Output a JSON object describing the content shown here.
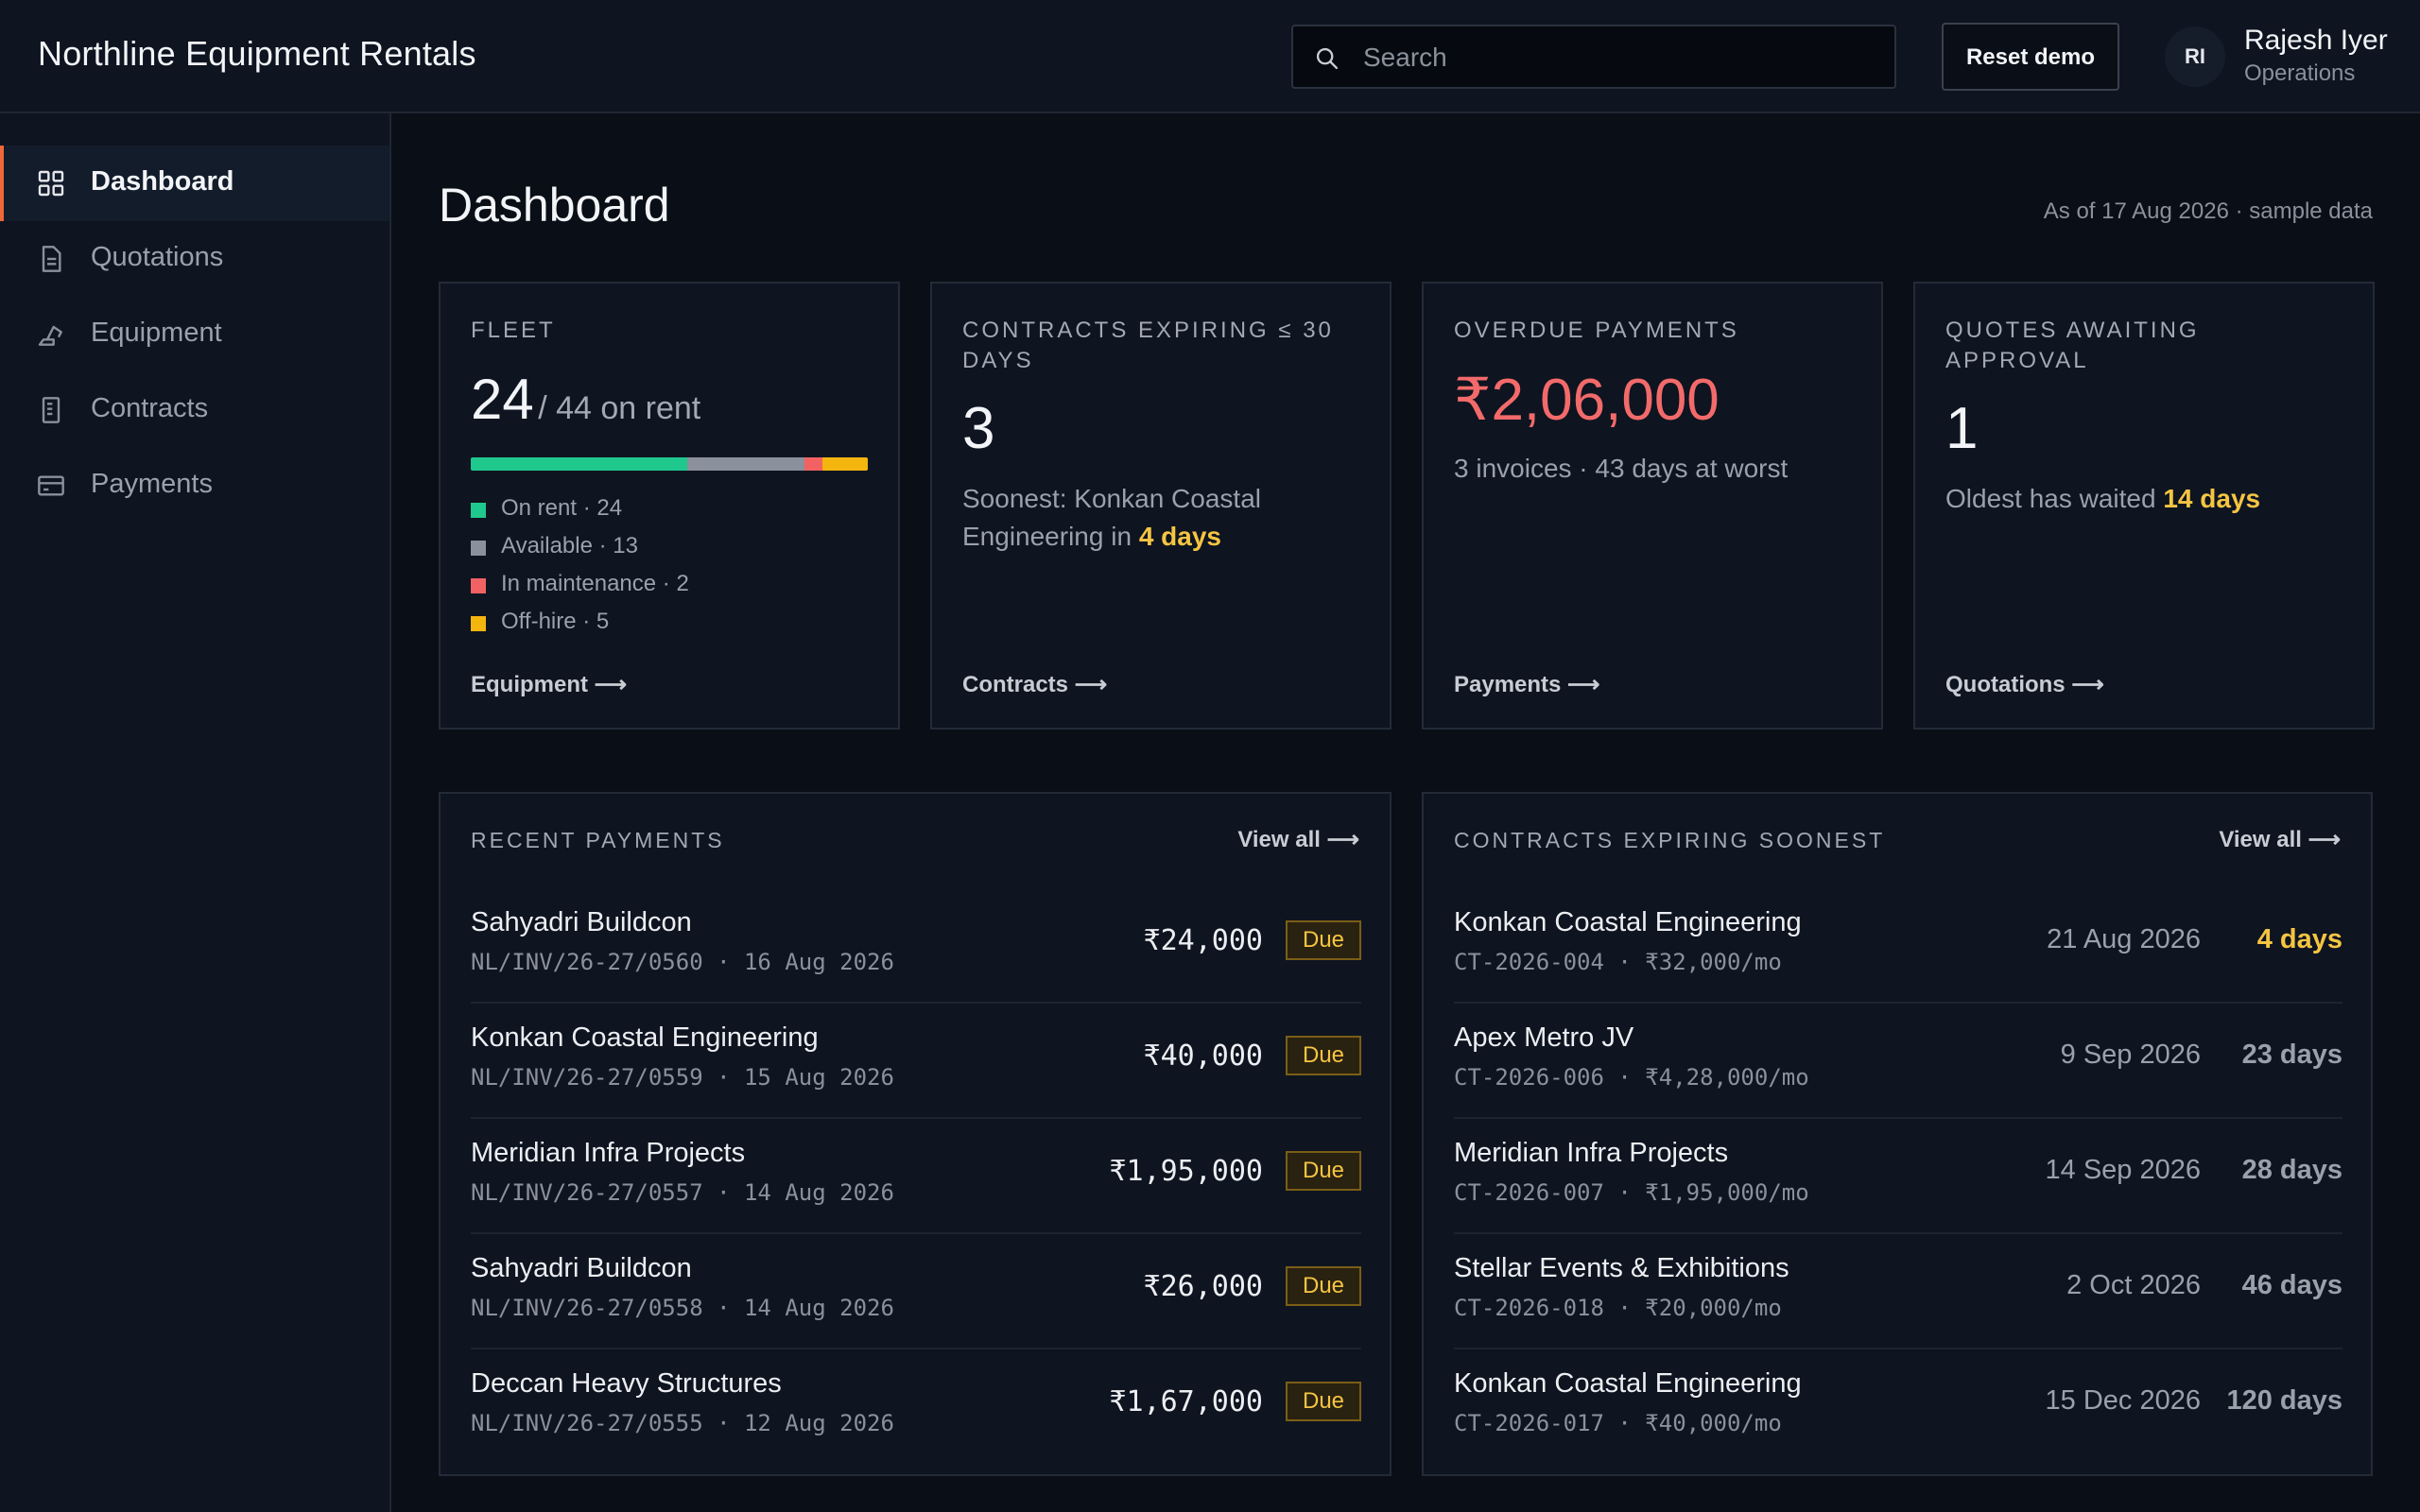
{
  "app": {
    "title": "Northline Equipment Rentals"
  },
  "header": {
    "search_placeholder": "Search",
    "reset_label": "Reset demo",
    "user_initials": "RI",
    "user_name": "Rajesh Iyer",
    "user_role": "Operations"
  },
  "sidebar": {
    "items": [
      {
        "label": "Dashboard",
        "icon": "grid-icon",
        "active": true
      },
      {
        "label": "Quotations",
        "icon": "document-icon",
        "active": false
      },
      {
        "label": "Equipment",
        "icon": "excavator-icon",
        "active": false
      },
      {
        "label": "Contracts",
        "icon": "contract-icon",
        "active": false
      },
      {
        "label": "Payments",
        "icon": "card-icon",
        "active": false
      }
    ]
  },
  "page": {
    "title": "Dashboard",
    "as_of": "As of 17 Aug 2026 · sample data"
  },
  "cards": {
    "fleet": {
      "label": "FLEET",
      "on_rent": "24",
      "total_text": "/ 44 on rent",
      "bar": [
        {
          "name": "On rent",
          "value": 24,
          "color": "#1fc98e"
        },
        {
          "name": "Available",
          "value": 13,
          "color": "#8a919c"
        },
        {
          "name": "In maintenance",
          "value": 2,
          "color": "#f26262"
        },
        {
          "name": "Off-hire",
          "value": 5,
          "color": "#f5b50f"
        }
      ],
      "legend": [
        "On rent · 24",
        "Available · 13",
        "In maintenance · 2",
        "Off-hire · 5"
      ],
      "link": "Equipment ⟶"
    },
    "contracts": {
      "label": "CONTRACTS EXPIRING ≤ 30 DAYS",
      "value": "3",
      "text_pre": "Soonest: Konkan Coastal Engineering in ",
      "text_hl": "4 days",
      "link": "Contracts ⟶"
    },
    "overdue": {
      "label": "OVERDUE PAYMENTS",
      "value": "₹2,06,000",
      "value_color": "#f26a6a",
      "text": "3 invoices · 43 days at worst",
      "link": "Payments ⟶"
    },
    "quotes": {
      "label": "QUOTES AWAITING APPROVAL",
      "value": "1",
      "text_pre": "Oldest has waited ",
      "text_hl": "14 days",
      "link": "Quotations ⟶"
    }
  },
  "recent_payments": {
    "title": "RECENT PAYMENTS",
    "link": "View all ⟶",
    "rows": [
      {
        "name": "Sahyadri Buildcon",
        "meta": "NL/INV/26-27/0560 · 16 Aug 2026",
        "amount": "₹24,000",
        "status": "Due"
      },
      {
        "name": "Konkan Coastal Engineering",
        "meta": "NL/INV/26-27/0559 · 15 Aug 2026",
        "amount": "₹40,000",
        "status": "Due"
      },
      {
        "name": "Meridian Infra Projects",
        "meta": "NL/INV/26-27/0557 · 14 Aug 2026",
        "amount": "₹1,95,000",
        "status": "Due"
      },
      {
        "name": "Sahyadri Buildcon",
        "meta": "NL/INV/26-27/0558 · 14 Aug 2026",
        "amount": "₹26,000",
        "status": "Due"
      },
      {
        "name": "Deccan Heavy Structures",
        "meta": "NL/INV/26-27/0555 · 12 Aug 2026",
        "amount": "₹1,67,000",
        "status": "Due"
      }
    ]
  },
  "contracts_expiring": {
    "title": "CONTRACTS EXPIRING SOONEST",
    "link": "View all ⟶",
    "rows": [
      {
        "name": "Konkan Coastal Engineering",
        "meta": "CT-2026-004 · ₹32,000/mo",
        "date": "21 Aug 2026",
        "days": "4 days",
        "soon": true
      },
      {
        "name": "Apex Metro JV",
        "meta": "CT-2026-006 · ₹4,28,000/mo",
        "date": "9 Sep 2026",
        "days": "23 days",
        "soon": false
      },
      {
        "name": "Meridian Infra Projects",
        "meta": "CT-2026-007 · ₹1,95,000/mo",
        "date": "14 Sep 2026",
        "days": "28 days",
        "soon": false
      },
      {
        "name": "Stellar Events & Exhibitions",
        "meta": "CT-2026-018 · ₹20,000/mo",
        "date": "2 Oct 2026",
        "days": "46 days",
        "soon": false
      },
      {
        "name": "Konkan Coastal Engineering",
        "meta": "CT-2026-017 · ₹40,000/mo",
        "date": "15 Dec 2026",
        "days": "120 days",
        "soon": false
      }
    ]
  }
}
